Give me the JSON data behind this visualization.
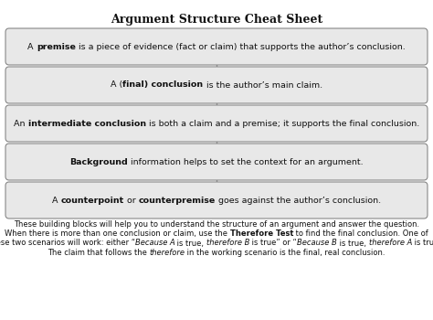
{
  "title": "Argument Structure Cheat Sheet",
  "title_fontsize": 9,
  "bg_color": "#ffffff",
  "box_bg": "#e8e8e8",
  "box_edge": "#888888",
  "connector_color": "#888888",
  "connector_lw": 1.0,
  "box_parts": [
    [
      [
        "A ",
        false,
        false
      ],
      [
        "premise",
        true,
        false
      ],
      [
        " is a piece of evidence (fact or claim) that supports the author’s conclusion.",
        false,
        false
      ]
    ],
    [
      [
        "A (",
        false,
        false
      ],
      [
        "final) conclusion",
        true,
        false
      ],
      [
        " is the author’s main claim.",
        false,
        false
      ]
    ],
    [
      [
        "An ",
        false,
        false
      ],
      [
        "intermediate conclusion",
        true,
        false
      ],
      [
        " is both a claim and a premise; it supports the final conclusion.",
        false,
        false
      ]
    ],
    [
      [
        "",
        false,
        false
      ],
      [
        "Background",
        true,
        false
      ],
      [
        " information helps to set the context for an argument.",
        false,
        false
      ]
    ],
    [
      [
        "A ",
        false,
        false
      ],
      [
        "counterpoint",
        true,
        false
      ],
      [
        " or ",
        false,
        false
      ],
      [
        "counterpremise",
        true,
        false
      ],
      [
        " goes against the author’s conclusion.",
        false,
        false
      ]
    ]
  ],
  "footer_blocks": [
    [
      [
        "These building blocks will help you to understand the structure of an argument and answer the question.",
        false,
        false
      ]
    ],
    [
      [
        "When there is more than one conclusion or claim, use the ",
        false,
        false
      ],
      [
        "Therefore Test",
        true,
        false
      ],
      [
        " to find the final conclusion. One of",
        false,
        false
      ]
    ],
    [
      [
        "these two scenarios will work: either “",
        false,
        false
      ],
      [
        "Because A",
        false,
        true
      ],
      [
        " is true, ",
        false,
        false
      ],
      [
        "therefore B",
        false,
        true
      ],
      [
        " is true” or “",
        false,
        false
      ],
      [
        "Because B",
        false,
        true
      ],
      [
        " is true, ",
        false,
        false
      ],
      [
        "therefore A",
        false,
        true
      ],
      [
        " is true.”",
        false,
        false
      ]
    ],
    [
      [
        "The claim that follows the ",
        false,
        false
      ],
      [
        "therefore",
        false,
        true
      ],
      [
        " in the working scenario is the final, real conclusion.",
        false,
        false
      ]
    ]
  ]
}
